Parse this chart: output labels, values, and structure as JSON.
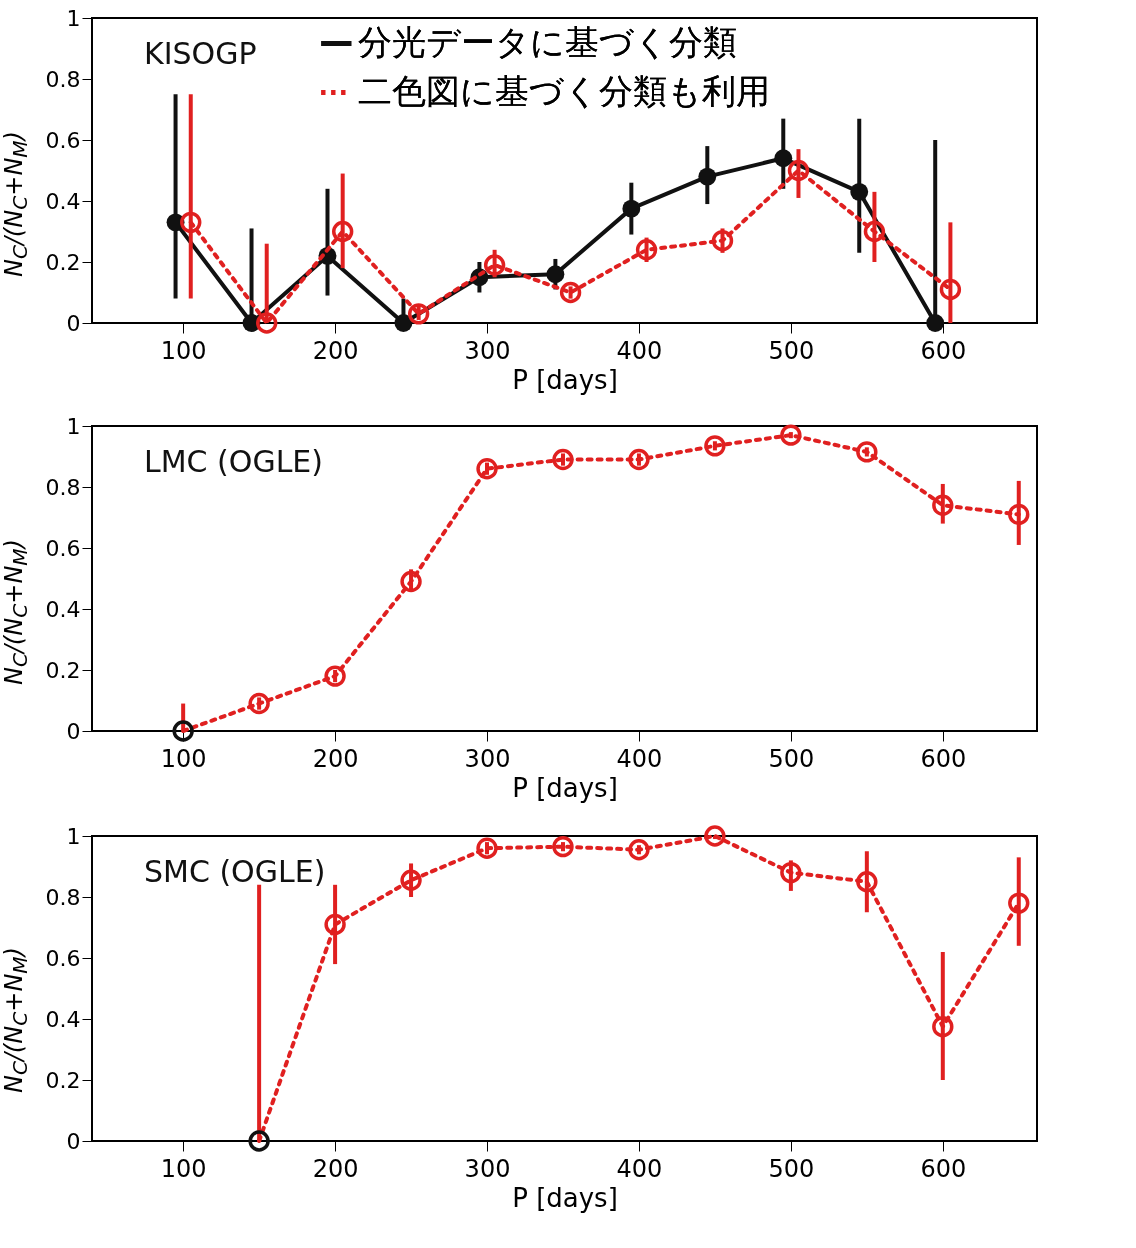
{
  "chart_data": [
    {
      "type": "line",
      "title": "KISOGP",
      "xlabel": "P [days]",
      "ylabel": "N$_{C}$/(N$_{C}$+N$_{M}$)",
      "xlim": [
        40,
        662
      ],
      "ylim": [
        0,
        1
      ],
      "xticks": [
        100,
        200,
        300,
        400,
        500,
        600
      ],
      "yticks": [
        0,
        0.2,
        0.4,
        0.6,
        0.8,
        1
      ],
      "legend": "top",
      "marker": "circle",
      "series": [
        {
          "name": "分光データに基づく分類",
          "color": "#111111",
          "line_style": "solid",
          "x": [
            95,
            145,
            195,
            245,
            295,
            345,
            395,
            445,
            495,
            545,
            595
          ],
          "values": [
            0.33,
            0,
            0.22,
            0,
            0.15,
            0.16,
            0.375,
            0.48,
            0.54,
            0.43,
            0
          ],
          "errors": [
            [
              0.08,
              0.75
            ],
            [
              0,
              0.31
            ],
            [
              0.09,
              0.44
            ],
            [
              0,
              0.08
            ],
            [
              0.1,
              0.2
            ],
            [
              0.11,
              0.21
            ],
            [
              0.29,
              0.46
            ],
            [
              0.39,
              0.58
            ],
            [
              0.44,
              0.67
            ],
            [
              0.23,
              0.67
            ],
            [
              0,
              0.6
            ]
          ]
        },
        {
          "name": "二色図に基づく分類も利用",
          "color": "#e02020",
          "line_style": "dotted",
          "x": [
            105,
            155,
            205,
            255,
            305,
            355,
            405,
            455,
            505,
            555,
            605
          ],
          "values": [
            0.33,
            0,
            0.3,
            0.03,
            0.19,
            0.1,
            0.24,
            0.27,
            0.5,
            0.3,
            0.11
          ],
          "errors": [
            [
              0.08,
              0.75
            ],
            [
              0,
              0.26
            ],
            [
              0.18,
              0.49
            ],
            [
              0.01,
              0.06
            ],
            [
              0.15,
              0.24
            ],
            [
              0.08,
              0.12
            ],
            [
              0.2,
              0.28
            ],
            [
              0.23,
              0.31
            ],
            [
              0.41,
              0.57
            ],
            [
              0.2,
              0.43
            ],
            [
              0,
              0.33
            ]
          ]
        }
      ]
    },
    {
      "type": "line",
      "title": "LMC (OGLE)",
      "xlabel": "P [days]",
      "ylabel": "N$_{C}$/(N$_{C}$+N$_{M}$)",
      "xlim": [
        40,
        662
      ],
      "ylim": [
        0,
        1
      ],
      "xticks": [
        100,
        200,
        300,
        400,
        500,
        600
      ],
      "yticks": [
        0,
        0.2,
        0.4,
        0.6,
        0.8,
        1
      ],
      "marker": "circle",
      "series": [
        {
          "color": "#e02020",
          "line_style": "dotted",
          "colors": [
            "#111111",
            "#e02020",
            "#e02020",
            "#e02020",
            "#e02020",
            "#e02020",
            "#e02020",
            "#e02020",
            "#e02020",
            "#e02020",
            "#e02020",
            "#e02020"
          ],
          "x": [
            100,
            150,
            200,
            250,
            300,
            350,
            400,
            450,
            500,
            550,
            600,
            650
          ],
          "values": [
            0,
            0.09,
            0.18,
            0.49,
            0.86,
            0.89,
            0.89,
            0.935,
            0.97,
            0.915,
            0.74,
            0.71
          ],
          "errors": [
            [
              0,
              0.09
            ],
            [
              0.07,
              0.11
            ],
            [
              0.16,
              0.2
            ],
            [
              0.46,
              0.53
            ],
            [
              0.84,
              0.88
            ],
            [
              0.87,
              0.91
            ],
            [
              0.87,
              0.91
            ],
            [
              0.92,
              0.95
            ],
            [
              0.96,
              0.98
            ],
            [
              0.9,
              0.93
            ],
            [
              0.68,
              0.81
            ],
            [
              0.61,
              0.82
            ]
          ]
        }
      ]
    },
    {
      "type": "line",
      "title": "SMC (OGLE)",
      "xlabel": "P [days]",
      "ylabel": "N$_{C}$/(N$_{C}$+N$_{M}$)",
      "xlim": [
        40,
        662
      ],
      "ylim": [
        0,
        1
      ],
      "xticks": [
        100,
        200,
        300,
        400,
        500,
        600
      ],
      "yticks": [
        0,
        0.2,
        0.4,
        0.6,
        0.8,
        1
      ],
      "marker": "circle",
      "series": [
        {
          "color": "#e02020",
          "line_style": "dotted",
          "colors": [
            "#111111",
            "#e02020",
            "#e02020",
            "#e02020",
            "#e02020",
            "#e02020",
            "#e02020",
            "#e02020",
            "#e02020",
            "#e02020",
            "#e02020"
          ],
          "x": [
            150,
            200,
            250,
            300,
            350,
            400,
            450,
            500,
            550,
            600,
            650
          ],
          "values": [
            0,
            0.71,
            0.855,
            0.96,
            0.965,
            0.955,
            1,
            0.88,
            0.85,
            0.375,
            0.78
          ],
          "errors": [
            [
              0,
              0.84
            ],
            [
              0.58,
              0.84
            ],
            [
              0.8,
              0.91
            ],
            [
              0.94,
              0.98
            ],
            [
              0.95,
              0.98
            ],
            [
              0.94,
              0.97
            ],
            [
              0.99,
              1
            ],
            [
              0.82,
              0.92
            ],
            [
              0.75,
              0.95
            ],
            [
              0.2,
              0.62
            ],
            [
              0.64,
              0.93
            ]
          ]
        }
      ]
    }
  ]
}
